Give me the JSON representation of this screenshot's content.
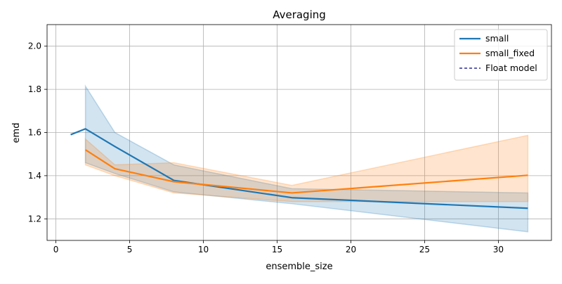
{
  "chart_data": {
    "type": "line",
    "title": "Averaging",
    "xlabel": "ensemble_size",
    "ylabel": "emd",
    "xlim": [
      -0.6,
      33.6
    ],
    "ylim": [
      1.1,
      2.1
    ],
    "xticks": [
      0,
      5,
      10,
      15,
      20,
      25,
      30
    ],
    "yticks": [
      1.2,
      1.4,
      1.6,
      1.8,
      2.0
    ],
    "xtick_labels": [
      "0",
      "5",
      "10",
      "15",
      "20",
      "25",
      "30"
    ],
    "ytick_labels": [
      "1.2",
      "1.4",
      "1.6",
      "1.8",
      "2.0"
    ],
    "grid": true,
    "legend_position": "top-right",
    "series": [
      {
        "name": "small",
        "color": "#1f77b4",
        "style": "solid",
        "x": [
          1,
          2,
          4,
          8,
          16,
          32
        ],
        "y": [
          1.59,
          1.617,
          1.535,
          1.378,
          1.298,
          1.249
        ],
        "band_upper": [
          null,
          1.815,
          1.6,
          1.45,
          1.34,
          1.32
        ],
        "band_lower": [
          null,
          1.46,
          1.41,
          1.325,
          1.27,
          1.14
        ]
      },
      {
        "name": "small_fixed",
        "color": "#ff7f0e",
        "style": "solid",
        "x": [
          2,
          4,
          8,
          16,
          32
        ],
        "y": [
          1.52,
          1.432,
          1.372,
          1.32,
          1.402
        ],
        "band_upper": [
          1.57,
          1.45,
          1.46,
          1.355,
          1.587
        ],
        "band_lower": [
          1.45,
          1.4,
          1.32,
          1.28,
          1.28
        ]
      },
      {
        "name": "Float model",
        "color": "#000080",
        "style": "dashed",
        "hline": 1.097
      }
    ]
  }
}
